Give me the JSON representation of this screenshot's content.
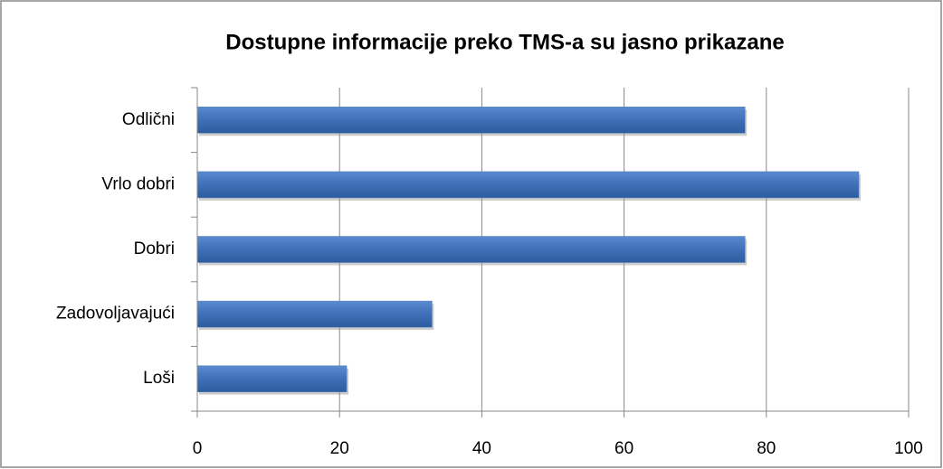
{
  "chart_data": {
    "type": "bar",
    "orientation": "horizontal",
    "title": "Dostupne informacije preko TMS-a su jasno prikazane",
    "categories": [
      "Odlični",
      "Vrlo dobri",
      "Dobri",
      "Zadovoljavajući",
      "Loši"
    ],
    "values": [
      77,
      93,
      77,
      33,
      21
    ],
    "color": "#4f81bd",
    "xlim": [
      0,
      100
    ],
    "xticks": [
      0,
      20,
      40,
      60,
      80,
      100
    ],
    "grid": true
  }
}
